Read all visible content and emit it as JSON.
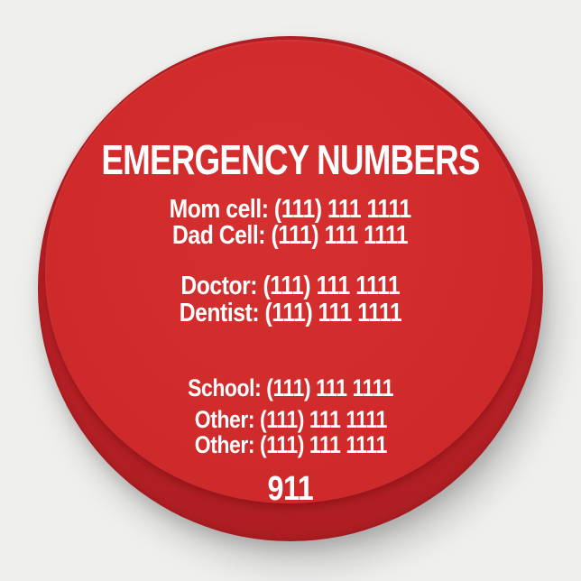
{
  "magnet": {
    "title": "EMERGENCY NUMBERS",
    "lines": [
      "Mom cell: (111) 111 1111",
      "Dad Cell: (111) 111 1111",
      "Doctor: (111) 111 1111",
      "Dentist: (111) 111 1111",
      "School: (111) 111 1111",
      "Other: (111) 111 1111",
      "Other: (111) 111 1111",
      "911"
    ],
    "colors": {
      "background": "#efefee",
      "face": "#d02a2b",
      "face_light": "#d5302f",
      "face_deep": "#c9272a",
      "rim": "#bd2328",
      "rim_dark": "#ad1e23",
      "text": "#ffffff"
    }
  }
}
